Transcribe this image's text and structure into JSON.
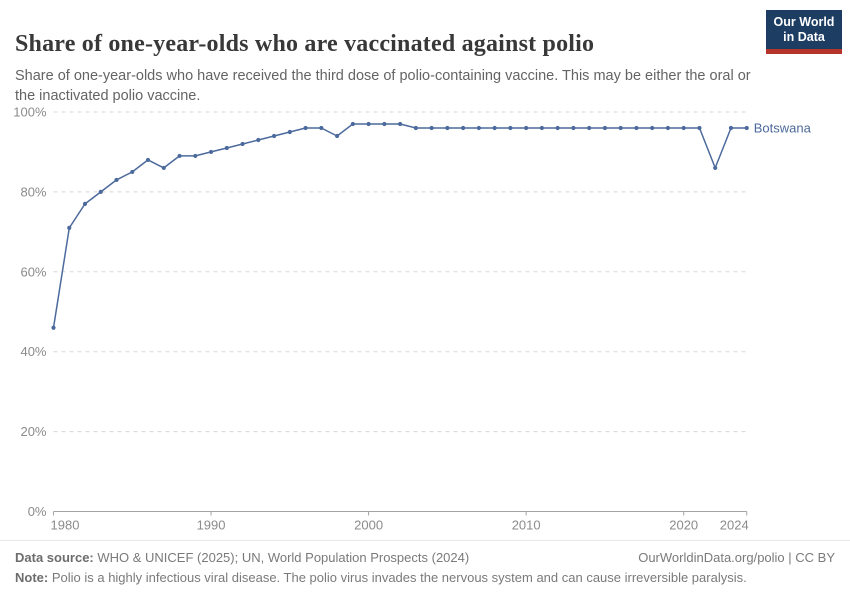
{
  "header": {
    "title": "Share of one-year-olds who are vaccinated against polio",
    "subtitle": "Share of one-year-olds who have received the third dose of polio-containing vaccine. This may be either the oral or the inactivated polio vaccine.",
    "logo": {
      "line1": "Our World",
      "line2": "in Data",
      "bg_color": "#1d3d63",
      "bar_color": "#b5342c"
    }
  },
  "chart_data": {
    "type": "line",
    "title": "Share of one-year-olds who are vaccinated against polio",
    "xlabel": "",
    "ylabel": "",
    "xlim": [
      1980,
      2024
    ],
    "ylim": [
      0,
      100
    ],
    "grid": "horizontal-dashed",
    "legend_position": "end-of-line-label",
    "x_ticks": [
      1980,
      1990,
      2000,
      2010,
      2020,
      2024
    ],
    "x_tick_labels": [
      "1980",
      "1990",
      "2000",
      "2010",
      "2020",
      "2024"
    ],
    "y_ticks": [
      0,
      20,
      40,
      60,
      80,
      100
    ],
    "y_tick_labels": [
      "0%",
      "20%",
      "40%",
      "60%",
      "80%",
      "100%"
    ],
    "series": [
      {
        "name": "Botswana",
        "color": "#4c6a9c",
        "x": [
          1980,
          1981,
          1982,
          1983,
          1984,
          1985,
          1986,
          1987,
          1988,
          1989,
          1990,
          1991,
          1992,
          1993,
          1994,
          1995,
          1996,
          1997,
          1998,
          1999,
          2000,
          2001,
          2002,
          2003,
          2004,
          2005,
          2006,
          2007,
          2008,
          2009,
          2010,
          2011,
          2012,
          2013,
          2014,
          2015,
          2016,
          2017,
          2018,
          2019,
          2020,
          2021,
          2022,
          2023,
          2024
        ],
        "values": [
          46,
          71,
          77,
          80,
          83,
          85,
          88,
          86,
          89,
          89,
          90,
          91,
          92,
          93,
          94,
          95,
          96,
          96,
          94,
          97,
          97,
          97,
          97,
          96,
          96,
          96,
          96,
          96,
          96,
          96,
          96,
          96,
          96,
          96,
          96,
          96,
          96,
          96,
          96,
          96,
          96,
          96,
          86,
          96,
          96
        ]
      }
    ],
    "end_label": "Botswana"
  },
  "footer": {
    "datasource_label": "Data source:",
    "datasource_text": " WHO & UNICEF (2025); UN, World Population Prospects (2024)",
    "rights_text": "OurWorldinData.org/polio | CC BY",
    "note_label": "Note:",
    "note_text": " Polio is a highly infectious viral disease. The polio virus invades the nervous system and can cause irreversible paralysis."
  },
  "colors": {
    "line": "#4c6a9c",
    "grid": "#d8d8d8",
    "axis": "#a3a3a3",
    "tick_label": "#8b8b8b"
  }
}
